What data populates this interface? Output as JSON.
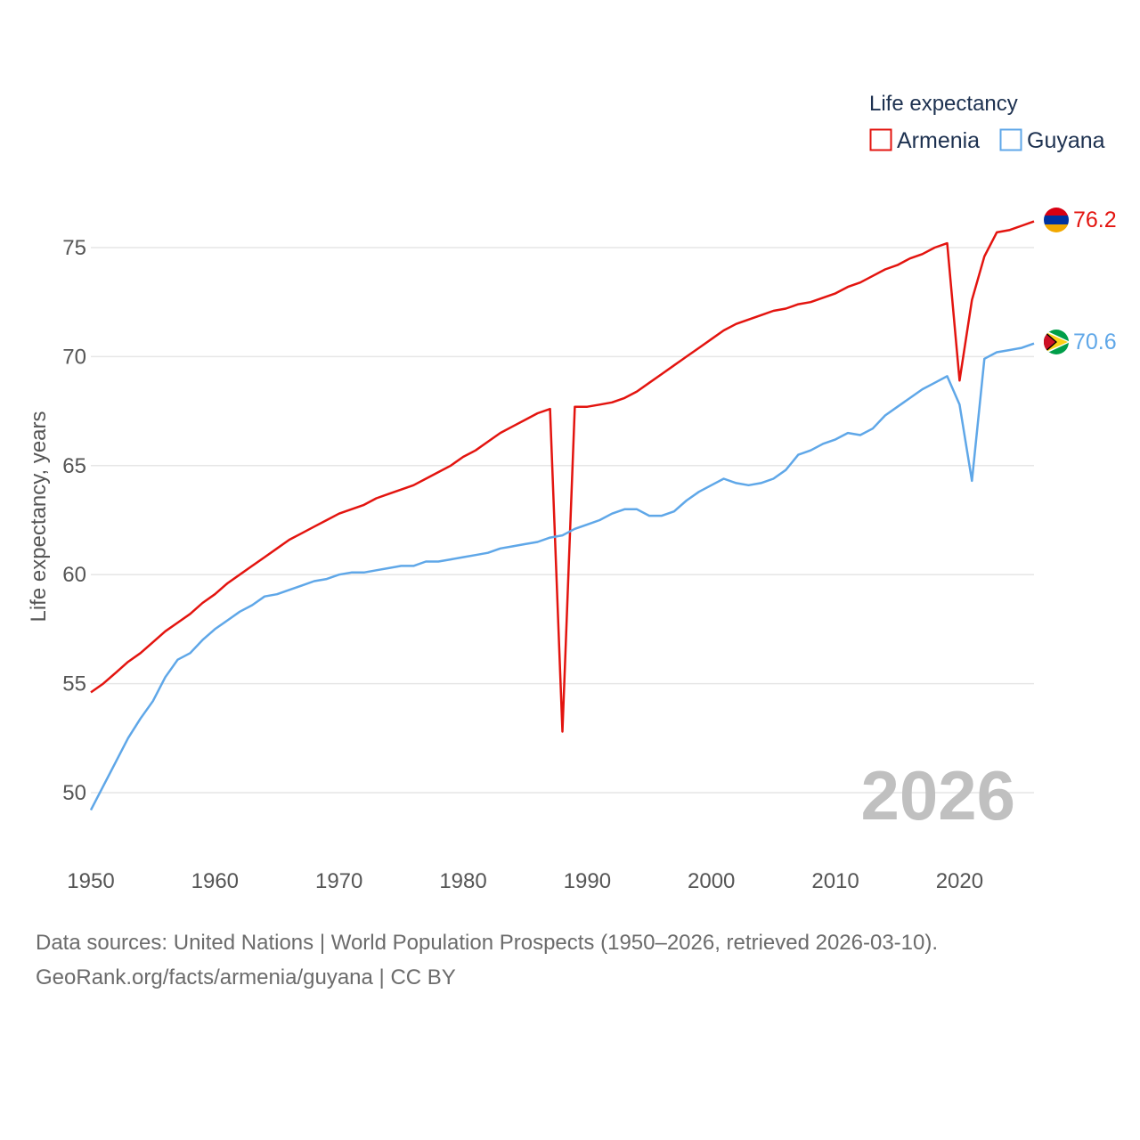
{
  "chart_data": {
    "type": "line",
    "title": "",
    "xlabel": "",
    "ylabel": "Life expectancy, years",
    "xlim": [
      1950,
      2026
    ],
    "ylim": [
      48,
      77.5
    ],
    "x_ticks": [
      1950,
      1960,
      1970,
      1980,
      1990,
      2000,
      2010,
      2020
    ],
    "y_ticks": [
      50,
      55,
      60,
      65,
      70,
      75
    ],
    "grid": true,
    "legend": {
      "title": "Life expectancy",
      "position": "top-right",
      "entries": [
        "Armenia",
        "Guyana"
      ]
    },
    "year_label": "2026",
    "x": [
      1950,
      1951,
      1952,
      1953,
      1954,
      1955,
      1956,
      1957,
      1958,
      1959,
      1960,
      1961,
      1962,
      1963,
      1964,
      1965,
      1966,
      1967,
      1968,
      1969,
      1970,
      1971,
      1972,
      1973,
      1974,
      1975,
      1976,
      1977,
      1978,
      1979,
      1980,
      1981,
      1982,
      1983,
      1984,
      1985,
      1986,
      1987,
      1988,
      1989,
      1990,
      1991,
      1992,
      1993,
      1994,
      1995,
      1996,
      1997,
      1998,
      1999,
      2000,
      2001,
      2002,
      2003,
      2004,
      2005,
      2006,
      2007,
      2008,
      2009,
      2010,
      2011,
      2012,
      2013,
      2014,
      2015,
      2016,
      2017,
      2018,
      2019,
      2020,
      2021,
      2022,
      2023,
      2024,
      2025,
      2026
    ],
    "series": [
      {
        "name": "Armenia",
        "color": "#e3140f",
        "end_label": "76.2",
        "flag": "armenia-flag-icon",
        "values": [
          54.6,
          55.0,
          55.5,
          56.0,
          56.4,
          56.9,
          57.4,
          57.8,
          58.2,
          58.7,
          59.1,
          59.6,
          60.0,
          60.4,
          60.8,
          61.2,
          61.6,
          61.9,
          62.2,
          62.5,
          62.8,
          63.0,
          63.2,
          63.5,
          63.7,
          63.9,
          64.1,
          64.4,
          64.7,
          65.0,
          65.4,
          65.7,
          66.1,
          66.5,
          66.8,
          67.1,
          67.4,
          67.6,
          52.8,
          67.7,
          67.7,
          67.8,
          67.9,
          68.1,
          68.4,
          68.8,
          69.2,
          69.6,
          70.0,
          70.4,
          70.8,
          71.2,
          71.5,
          71.7,
          71.9,
          72.1,
          72.2,
          72.4,
          72.5,
          72.7,
          72.9,
          73.2,
          73.4,
          73.7,
          74.0,
          74.2,
          74.5,
          74.7,
          75.0,
          75.2,
          68.9,
          72.6,
          74.6,
          75.7,
          75.8,
          76.0,
          76.2
        ]
      },
      {
        "name": "Guyana",
        "color": "#5fa7e8",
        "end_label": "70.6",
        "flag": "guyana-flag-icon",
        "values": [
          49.2,
          50.3,
          51.4,
          52.5,
          53.4,
          54.2,
          55.3,
          56.1,
          56.4,
          57.0,
          57.5,
          57.9,
          58.3,
          58.6,
          59.0,
          59.1,
          59.3,
          59.5,
          59.7,
          59.8,
          60.0,
          60.1,
          60.1,
          60.2,
          60.3,
          60.4,
          60.4,
          60.6,
          60.6,
          60.7,
          60.8,
          60.9,
          61.0,
          61.2,
          61.3,
          61.4,
          61.5,
          61.7,
          61.8,
          62.1,
          62.3,
          62.5,
          62.8,
          63.0,
          63.0,
          62.7,
          62.7,
          62.9,
          63.4,
          63.8,
          64.1,
          64.4,
          64.2,
          64.1,
          64.2,
          64.4,
          64.8,
          65.5,
          65.7,
          66.0,
          66.2,
          66.5,
          66.4,
          66.7,
          67.3,
          67.7,
          68.1,
          68.5,
          68.8,
          69.1,
          67.8,
          64.3,
          69.9,
          70.2,
          70.3,
          70.4,
          70.6
        ]
      }
    ]
  },
  "footer": {
    "source_line": "Data sources: United Nations | World Population Prospects (1950–2026, retrieved 2026-03-10).",
    "credit_line": "GeoRank.org/facts/armenia/guyana | CC BY"
  }
}
